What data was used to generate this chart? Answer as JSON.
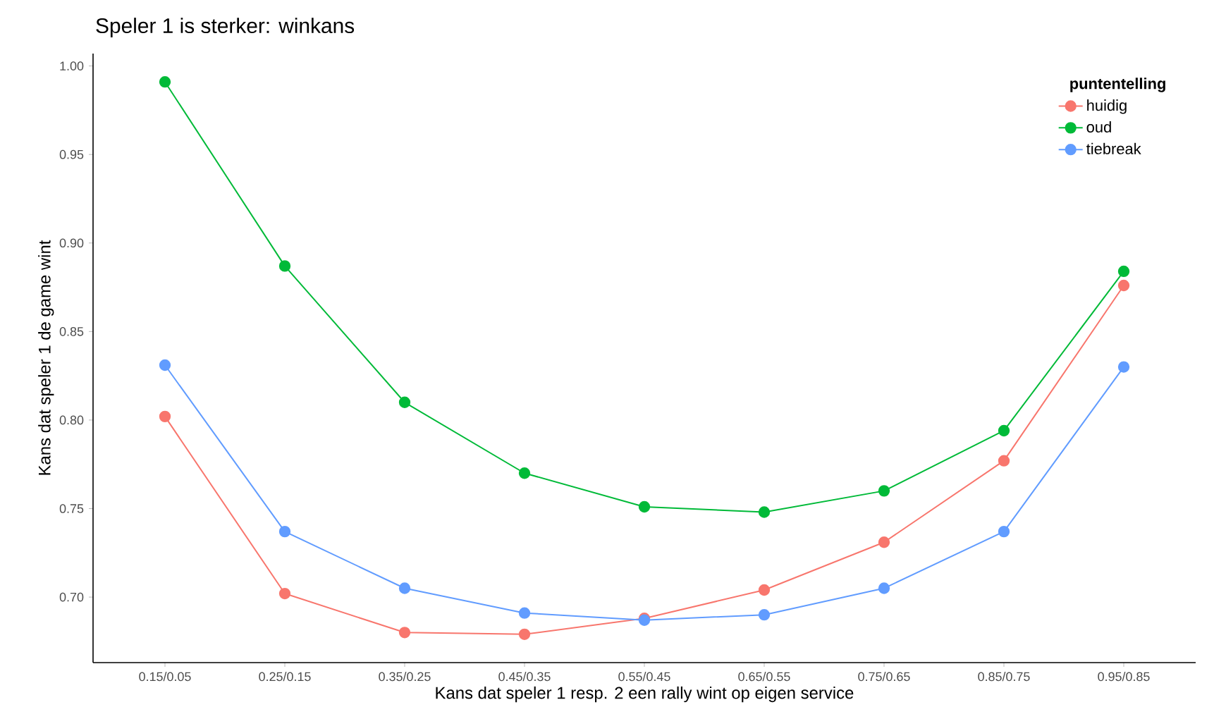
{
  "chart_data": {
    "type": "line",
    "title": "Speler 1 is sterker: winkans",
    "xlabel": "Kans dat speler 1 resp. 2 een rally wint op eigen service",
    "ylabel": "Kans dat speler 1 de game wint",
    "legend_title": "puntentelling",
    "categories": [
      "0.15/0.05",
      "0.25/0.15",
      "0.35/0.25",
      "0.45/0.35",
      "0.55/0.45",
      "0.65/0.55",
      "0.75/0.65",
      "0.85/0.75",
      "0.95/0.85"
    ],
    "series": [
      {
        "name": "huidig",
        "color": "#f8766d",
        "values": [
          0.802,
          0.702,
          0.68,
          0.679,
          0.688,
          0.704,
          0.731,
          0.777,
          0.876
        ]
      },
      {
        "name": "oud",
        "color": "#00ba38",
        "values": [
          0.991,
          0.887,
          0.81,
          0.77,
          0.751,
          0.748,
          0.76,
          0.794,
          0.884
        ]
      },
      {
        "name": "tiebreak",
        "color": "#619cff",
        "values": [
          0.831,
          0.737,
          0.705,
          0.691,
          0.687,
          0.69,
          0.705,
          0.737,
          0.83
        ]
      }
    ],
    "ylim": [
      0.663,
      1.007
    ],
    "yticks": [
      {
        "value": 0.7,
        "label": "0.70"
      },
      {
        "value": 0.75,
        "label": "0.75"
      },
      {
        "value": 0.8,
        "label": "0.80"
      },
      {
        "value": 0.85,
        "label": "0.85"
      },
      {
        "value": 0.9,
        "label": "0.90"
      },
      {
        "value": 0.95,
        "label": "0.95"
      },
      {
        "value": 1.0,
        "label": "1.00"
      }
    ],
    "grid": false,
    "legend": "top right",
    "marker": "circle",
    "line_style": "solid"
  }
}
